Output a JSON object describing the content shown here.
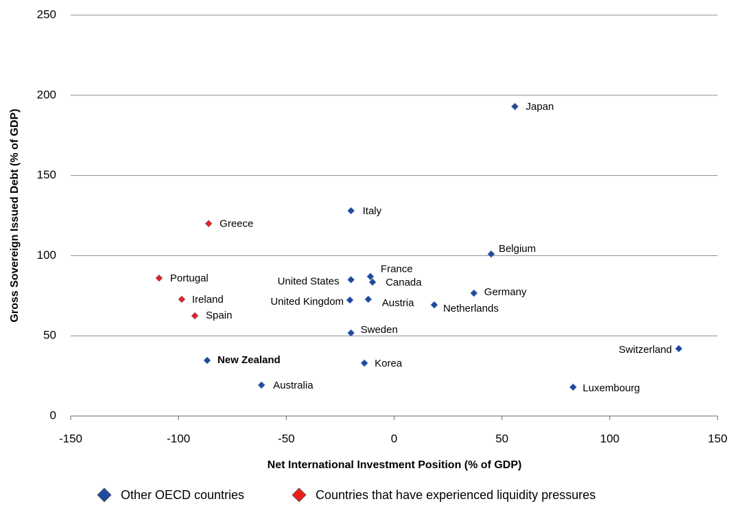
{
  "chart_data": {
    "type": "scatter",
    "x_label": "Net International Investment Position (% of GDP)",
    "y_label": "Gross Sovereign Issued Debt (% of GDP)",
    "xlim": [
      -150,
      150
    ],
    "xticks": [
      -150,
      -100,
      -50,
      0,
      50,
      100,
      150
    ],
    "ylim": [
      0,
      250
    ],
    "yticks": [
      0,
      50,
      100,
      150,
      200,
      250
    ],
    "grid": true,
    "legend": "bottom",
    "series": [
      {
        "name": "Other OECD countries",
        "color": "#1f4a9c",
        "labels": [
          "Japan",
          "Italy",
          "Belgium",
          "France",
          "United States",
          "Canada",
          "Germany",
          "United Kingdom",
          "Austria",
          "Netherlands",
          "Sweden",
          "Switzerland",
          "New Zealand",
          "Korea",
          "Australia",
          "Luxembourg"
        ],
        "x": [
          56,
          -20,
          45,
          -11,
          -20,
          -10,
          37,
          -20.5,
          -12,
          18.6,
          -20,
          132,
          -86.7,
          -13.8,
          -61.5,
          83
        ],
        "values": [
          193,
          128,
          101,
          87,
          85,
          83.5,
          76.6,
          72.3,
          72.8,
          69.3,
          51.8,
          42,
          34.7,
          33,
          19.3,
          18
        ]
      },
      {
        "name": "Countries that have experienced liquidity pressures",
        "color": "#e8201c",
        "labels": [
          "Greece",
          "Portugal",
          "Ireland",
          "Spain"
        ],
        "x": [
          -86,
          -109,
          -98.5,
          -92.4
        ],
        "values": [
          120,
          86,
          72.8,
          62.5
        ]
      }
    ]
  }
}
